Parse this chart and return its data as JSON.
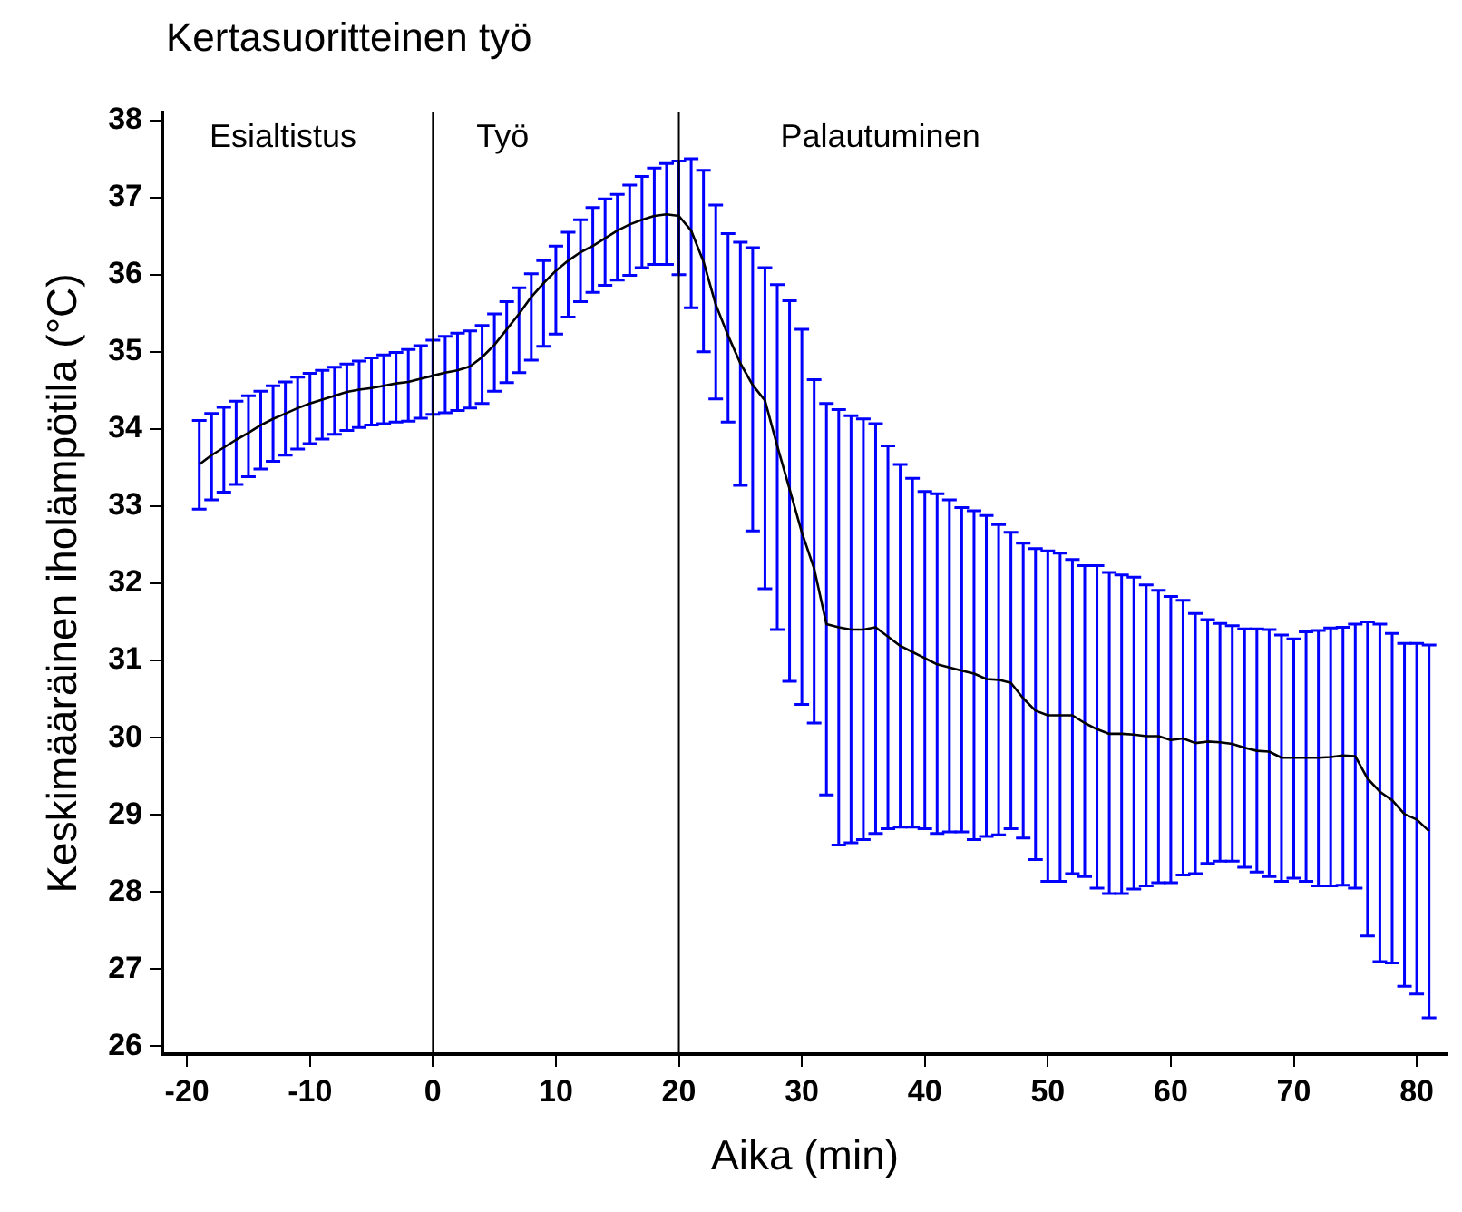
{
  "chart_data": {
    "type": "line",
    "title": "Kertasuoritteinen työ",
    "xlabel": "Aika (min)",
    "ylabel": "Keskimääräinen iholämpötila (°C)",
    "x": [
      -19,
      -18,
      -17,
      -16,
      -15,
      -14,
      -13,
      -12,
      -11,
      -10,
      -9,
      -8,
      -7,
      -6,
      -5,
      -4,
      -3,
      -2,
      -1,
      0,
      1,
      2,
      3,
      4,
      5,
      6,
      7,
      8,
      9,
      10,
      11,
      12,
      13,
      14,
      15,
      16,
      17,
      18,
      19,
      20,
      21,
      22,
      23,
      24,
      25,
      26,
      27,
      28,
      29,
      30,
      31,
      32,
      33,
      34,
      35,
      36,
      37,
      38,
      39,
      40,
      41,
      42,
      43,
      44,
      45,
      46,
      47,
      48,
      49,
      50,
      51,
      52,
      53,
      54,
      55,
      56,
      57,
      58,
      59,
      60,
      61,
      62,
      63,
      64,
      65,
      66,
      67,
      68,
      69,
      70,
      71,
      72,
      73,
      74,
      75,
      76,
      77,
      78,
      79,
      80,
      81
    ],
    "series": [
      {
        "color": "#000000",
        "values": [
          33.54,
          33.66,
          33.76,
          33.86,
          33.95,
          34.05,
          34.13,
          34.2,
          34.27,
          34.33,
          34.38,
          34.43,
          34.48,
          34.51,
          34.53,
          34.56,
          34.59,
          34.61,
          34.65,
          34.69,
          34.73,
          34.76,
          34.81,
          34.93,
          35.09,
          35.29,
          35.49,
          35.71,
          35.89,
          36.05,
          36.18,
          36.29,
          36.37,
          36.47,
          36.57,
          36.65,
          36.71,
          36.76,
          36.78,
          36.76,
          36.57,
          36.17,
          35.61,
          35.21,
          34.85,
          34.57,
          34.37,
          33.78,
          33.22,
          32.66,
          32.19,
          31.47,
          31.43,
          31.4,
          31.4,
          31.43,
          31.31,
          31.19,
          31.11,
          31.03,
          30.95,
          30.91,
          30.87,
          30.83,
          30.76,
          30.75,
          30.71,
          30.51,
          30.35,
          30.29,
          30.29,
          30.29,
          30.19,
          30.11,
          30.05,
          30.05,
          30.04,
          30.02,
          30.02,
          29.97,
          29.99,
          29.93,
          29.95,
          29.94,
          29.92,
          29.87,
          29.83,
          29.82,
          29.74,
          29.74,
          29.74,
          29.74,
          29.75,
          29.77,
          29.76,
          29.47,
          29.3,
          29.19,
          29.01,
          28.94,
          28.79
        ],
        "errors": [
          [
            32.96,
            34.11
          ],
          [
            33.08,
            34.2
          ],
          [
            33.18,
            34.28
          ],
          [
            33.28,
            34.36
          ],
          [
            33.38,
            34.43
          ],
          [
            33.48,
            34.49
          ],
          [
            33.58,
            34.56
          ],
          [
            33.66,
            34.61
          ],
          [
            33.74,
            34.67
          ],
          [
            33.81,
            34.72
          ],
          [
            33.87,
            34.76
          ],
          [
            33.93,
            34.8
          ],
          [
            33.98,
            34.84
          ],
          [
            34.02,
            34.88
          ],
          [
            34.05,
            34.92
          ],
          [
            34.07,
            34.96
          ],
          [
            34.09,
            34.99
          ],
          [
            34.1,
            35.03
          ],
          [
            34.14,
            35.08
          ],
          [
            34.19,
            35.15
          ],
          [
            34.21,
            35.2
          ],
          [
            34.24,
            35.24
          ],
          [
            34.27,
            35.27
          ],
          [
            34.33,
            35.34
          ],
          [
            34.49,
            35.49
          ],
          [
            34.6,
            35.65
          ],
          [
            34.73,
            35.83
          ],
          [
            34.89,
            36.01
          ],
          [
            35.07,
            36.18
          ],
          [
            35.23,
            36.37
          ],
          [
            35.45,
            36.55
          ],
          [
            35.65,
            36.71
          ],
          [
            35.77,
            36.87
          ],
          [
            35.86,
            36.98
          ],
          [
            35.93,
            37.04
          ],
          [
            35.99,
            37.16
          ],
          [
            36.09,
            37.27
          ],
          [
            36.13,
            37.38
          ],
          [
            36.13,
            37.44
          ],
          [
            36.0,
            37.47
          ],
          [
            35.57,
            37.5
          ],
          [
            35.0,
            37.35
          ],
          [
            34.39,
            36.9
          ],
          [
            34.09,
            36.53
          ],
          [
            33.27,
            36.42
          ],
          [
            32.68,
            36.35
          ],
          [
            31.93,
            36.09
          ],
          [
            31.4,
            35.87
          ],
          [
            30.73,
            35.66
          ],
          [
            30.43,
            35.29
          ],
          [
            30.19,
            34.64
          ],
          [
            29.26,
            34.33
          ],
          [
            28.61,
            34.25
          ],
          [
            28.64,
            34.17
          ],
          [
            28.68,
            34.13
          ],
          [
            28.76,
            34.07
          ],
          [
            28.82,
            33.78
          ],
          [
            28.84,
            33.54
          ],
          [
            28.84,
            33.36
          ],
          [
            28.82,
            33.19
          ],
          [
            28.76,
            33.16
          ],
          [
            28.78,
            33.08
          ],
          [
            28.78,
            32.98
          ],
          [
            28.68,
            32.94
          ],
          [
            28.72,
            32.88
          ],
          [
            28.74,
            32.76
          ],
          [
            28.82,
            32.66
          ],
          [
            28.7,
            32.52
          ],
          [
            28.42,
            32.45
          ],
          [
            28.14,
            32.42
          ],
          [
            28.14,
            32.39
          ],
          [
            28.24,
            32.31
          ],
          [
            28.2,
            32.23
          ],
          [
            28.05,
            32.23
          ],
          [
            27.98,
            32.14
          ],
          [
            27.98,
            32.11
          ],
          [
            28.04,
            32.08
          ],
          [
            28.08,
            31.98
          ],
          [
            28.12,
            31.91
          ],
          [
            28.12,
            31.83
          ],
          [
            28.22,
            31.78
          ],
          [
            28.24,
            31.61
          ],
          [
            28.37,
            31.53
          ],
          [
            28.4,
            31.48
          ],
          [
            28.4,
            31.45
          ],
          [
            28.32,
            31.41
          ],
          [
            28.26,
            31.41
          ],
          [
            28.2,
            31.4
          ],
          [
            28.14,
            31.33
          ],
          [
            28.18,
            31.28
          ],
          [
            28.14,
            31.37
          ],
          [
            28.08,
            31.39
          ],
          [
            28.08,
            31.42
          ],
          [
            28.09,
            31.43
          ],
          [
            28.05,
            31.47
          ],
          [
            27.43,
            31.5
          ],
          [
            27.1,
            31.47
          ],
          [
            27.08,
            31.35
          ],
          [
            26.78,
            31.22
          ],
          [
            26.68,
            31.22
          ],
          [
            26.37,
            31.2
          ]
        ]
      }
    ],
    "xlim": [
      -22,
      82.5
    ],
    "xticks": [
      -20,
      -10,
      0,
      10,
      20,
      30,
      40,
      50,
      60,
      70,
      80
    ],
    "ylim": [
      25.9,
      38.1
    ],
    "yticks": [
      26,
      27,
      28,
      29,
      30,
      31,
      32,
      33,
      34,
      35,
      36,
      37,
      38
    ],
    "ref_lines": [
      {
        "axis": "x",
        "value": 0,
        "color": "#000000"
      },
      {
        "axis": "x",
        "value": 20,
        "color": "#000000"
      }
    ],
    "annotations": [
      "Esialtistus",
      "Työ",
      "Palautuminen"
    ],
    "grid": false,
    "legend": false,
    "marker": "none",
    "line_style": "solid"
  }
}
